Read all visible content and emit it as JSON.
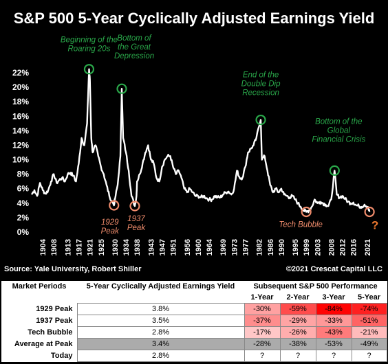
{
  "title": "S&P 500 5-Year Cyclically Adjusted Earnings Yield",
  "source_left": "Source: Yale University, Robert Shiller",
  "source_right": "©2021 Crescat Capital LLC",
  "colors": {
    "line": "#ffffff",
    "green": "#2aa84a",
    "red_annot": "#f08c6c",
    "orange_q": "#f07a30"
  },
  "chart_data": {
    "type": "line",
    "title": "S&P 500 5-Year Cyclically Adjusted Earnings Yield",
    "ylim": [
      0,
      22
    ],
    "xlim": [
      1900,
      2024
    ],
    "yticks": [
      "22%",
      "20%",
      "18%",
      "16%",
      "14%",
      "12%",
      "10%",
      "8%",
      "6%",
      "4%",
      "2%",
      "0%"
    ],
    "ytick_values": [
      22,
      20,
      18,
      16,
      14,
      12,
      10,
      8,
      6,
      4,
      2,
      0
    ],
    "xticks": [
      "1904",
      "1908",
      "1913",
      "1917",
      "1921",
      "1925",
      "1930",
      "1934",
      "1938",
      "1943",
      "1947",
      "1951",
      "1956",
      "1960",
      "1964",
      "1969",
      "1973",
      "1977",
      "1982",
      "1986",
      "1990",
      "1995",
      "1999",
      "2003",
      "2008",
      "2012",
      "2016",
      "2021"
    ],
    "xtick_values": [
      1904,
      1908,
      1913,
      1917,
      1921,
      1925,
      1930,
      1934,
      1938,
      1943,
      1947,
      1951,
      1956,
      1960,
      1964,
      1969,
      1973,
      1977,
      1982,
      1986,
      1990,
      1995,
      1999,
      2003,
      2008,
      2012,
      2016,
      2021
    ],
    "grid": false,
    "series": [
      {
        "x": [
          1900,
          1901,
          1902,
          1903,
          1904,
          1905,
          1906,
          1907,
          1908,
          1909,
          1910,
          1911,
          1912,
          1913,
          1914,
          1915,
          1916,
          1917,
          1918,
          1919,
          1920,
          1920.7,
          1921,
          1921.5,
          1922,
          1923,
          1924,
          1925,
          1926,
          1927,
          1928,
          1929.7,
          1930,
          1931,
          1932,
          1932.5,
          1933,
          1934,
          1935,
          1936,
          1937.2,
          1937.8,
          1938,
          1939,
          1940,
          1941,
          1942,
          1943,
          1944,
          1945,
          1946,
          1947,
          1948,
          1949,
          1950,
          1951,
          1952,
          1953,
          1954,
          1955,
          1956,
          1957,
          1958,
          1959,
          1960,
          1961,
          1962,
          1963,
          1964,
          1965,
          1966,
          1967,
          1968,
          1969,
          1970,
          1971,
          1972,
          1973,
          1974,
          1975,
          1976,
          1977,
          1978,
          1979,
          1980,
          1981,
          1982.6,
          1983,
          1984,
          1985,
          1986,
          1987,
          1988,
          1989,
          1990,
          1991,
          1992,
          1993,
          1994,
          1995,
          1996,
          1997,
          1998,
          1999,
          2000,
          2001,
          2002,
          2003,
          2004,
          2005,
          2006,
          2007,
          2008,
          2009.2,
          2010,
          2011,
          2012,
          2013,
          2014,
          2015,
          2016,
          2017,
          2018,
          2019,
          2020,
          2021.2,
          2021.8
        ],
        "y": [
          5.2,
          5.8,
          5.0,
          6.8,
          5.8,
          5.3,
          5.8,
          7.0,
          8.0,
          6.8,
          7.2,
          7.5,
          7.0,
          8.0,
          8.2,
          7.8,
          7.0,
          9.5,
          13.0,
          12.0,
          15.0,
          22.5,
          21.0,
          13.0,
          11.0,
          12.0,
          10.5,
          9.0,
          8.0,
          6.5,
          5.0,
          3.7,
          4.5,
          6.5,
          10.5,
          19.8,
          13.0,
          11.0,
          8.5,
          5.0,
          3.6,
          5.0,
          7.0,
          8.0,
          9.5,
          11.0,
          12.0,
          10.0,
          9.5,
          7.5,
          7.0,
          9.0,
          10.0,
          10.5,
          10.5,
          9.0,
          8.0,
          8.5,
          7.5,
          6.0,
          5.5,
          6.0,
          5.5,
          5.0,
          5.0,
          4.8,
          5.0,
          4.7,
          4.5,
          4.5,
          5.0,
          4.8,
          4.8,
          5.2,
          5.5,
          5.6,
          5.2,
          6.0,
          8.5,
          7.5,
          7.5,
          9.0,
          11.0,
          11.5,
          12.0,
          13.0,
          15.5,
          10.0,
          10.5,
          8.5,
          6.5,
          5.5,
          6.0,
          5.5,
          6.0,
          5.2,
          5.0,
          4.8,
          5.0,
          4.5,
          4.0,
          3.5,
          3.0,
          2.8,
          3.0,
          3.5,
          4.5,
          4.0,
          4.2,
          4.0,
          3.8,
          3.6,
          4.5,
          8.5,
          5.2,
          4.8,
          5.0,
          4.6,
          4.2,
          4.0,
          4.1,
          3.7,
          3.6,
          3.5,
          3.8,
          3.5,
          2.8
        ]
      }
    ],
    "annotations": [
      {
        "text": [
          "Beginning of the",
          "Roaring 20s"
        ],
        "x": 1920.7,
        "y": 22.5,
        "color": "green"
      },
      {
        "text": [
          "Bottom of",
          "the Great",
          "Depression"
        ],
        "x": 1932.5,
        "y": 19.8,
        "color": "green"
      },
      {
        "text": [
          "End of the",
          "Double Dip",
          "Recession"
        ],
        "x": 1982.6,
        "y": 15.5,
        "color": "green"
      },
      {
        "text": [
          "Bottom of the",
          "Global",
          "Financial Crisis"
        ],
        "x": 2009.2,
        "y": 8.5,
        "color": "green"
      },
      {
        "text": [
          "1929",
          "Peak"
        ],
        "x": 1929.7,
        "y": 3.7,
        "color": "red"
      },
      {
        "text": [
          "1937",
          "Peak"
        ],
        "x": 1937.2,
        "y": 3.6,
        "color": "red"
      },
      {
        "text": [
          "Tech Bubble"
        ],
        "x": 1999,
        "y": 2.8,
        "color": "red"
      },
      {
        "text": [
          "?"
        ],
        "x": 2021.8,
        "y": 2.8,
        "color": "red"
      }
    ]
  },
  "table": {
    "headers": {
      "market": "Market Periods",
      "yield": "5-Year Cyclically Adjusted Earnings Yield",
      "subsequent": "Subsequent S&P 500 Performance",
      "y1": "1-Year",
      "y2": "2-Year",
      "y3": "3-Year",
      "y5": "5-Year"
    },
    "rows": [
      {
        "label": "1929 Peak",
        "yield": "3.8%",
        "perf": [
          "-30%",
          "-59%",
          "-84%",
          "-74%"
        ],
        "perf_values": [
          -30,
          -59,
          -84,
          -74
        ]
      },
      {
        "label": "1937 Peak",
        "yield": "3.5%",
        "perf": [
          "-37%",
          "-29%",
          "-33%",
          "-51%"
        ],
        "perf_values": [
          -37,
          -29,
          -33,
          -51
        ]
      },
      {
        "label": "Tech Bubble",
        "yield": "2.8%",
        "perf": [
          "-17%",
          "-26%",
          "-43%",
          "-21%"
        ],
        "perf_values": [
          -17,
          -26,
          -43,
          -21
        ]
      },
      {
        "label": "Average at Peak",
        "yield": "3.4%",
        "perf": [
          "-28%",
          "-38%",
          "-53%",
          "-49%"
        ],
        "perf_values": [
          -28,
          -38,
          -53,
          -49
        ]
      },
      {
        "label": "Today",
        "yield": "2.8%",
        "perf": [
          "?",
          "?",
          "?",
          "?"
        ]
      }
    ]
  }
}
